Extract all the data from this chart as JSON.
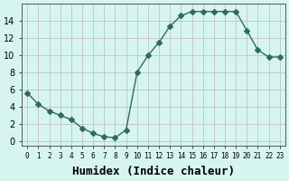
{
  "x": [
    0,
    1,
    2,
    3,
    4,
    5,
    6,
    7,
    8,
    9,
    10,
    11,
    12,
    13,
    14,
    15,
    16,
    17,
    18,
    19,
    20,
    21,
    22,
    23
  ],
  "y": [
    5.6,
    4.3,
    3.5,
    3.0,
    2.5,
    1.5,
    0.9,
    0.5,
    0.4,
    1.3,
    8.0,
    10.0,
    11.5,
    13.4,
    14.6,
    15.1,
    15.1,
    15.1,
    15.1,
    15.1,
    12.9,
    10.6,
    9.8,
    9.8
  ],
  "line_color": "#2e6b5e",
  "marker": "D",
  "marker_size": 3,
  "bg_color": "#d6f5f0",
  "grid_color": "#c0b8b8",
  "xlabel": "Humidex (Indice chaleur)",
  "xlabel_fontsize": 9,
  "xtick_labels": [
    "0",
    "1",
    "2",
    "3",
    "4",
    "5",
    "6",
    "7",
    "8",
    "9",
    "10",
    "11",
    "12",
    "13",
    "14",
    "15",
    "16",
    "17",
    "18",
    "19",
    "20",
    "21",
    "22",
    "23"
  ],
  "ylim": [
    -0.5,
    16
  ],
  "yticks": [
    0,
    2,
    4,
    6,
    8,
    10,
    12,
    14
  ]
}
